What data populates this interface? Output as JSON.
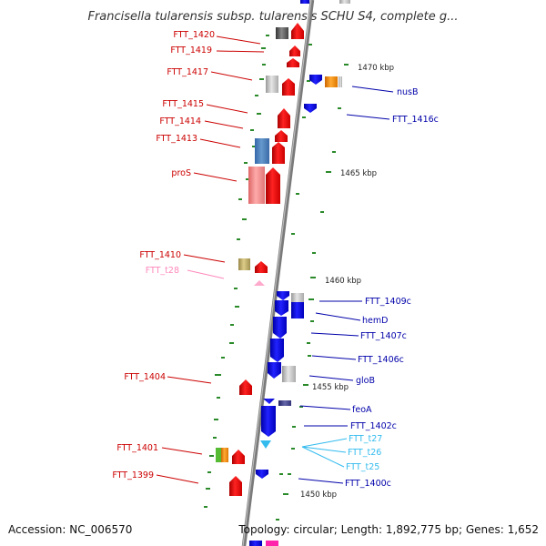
{
  "title": "Francisella tularensis subsp. tularensis SCHU S4, complete g...",
  "footer": {
    "accession": "Accession: NC_006570",
    "topology": "Topology: circular; Length: 1,892,775 bp; Genes: 1,652"
  },
  "colors": {
    "backbone": "#888888",
    "forward_gene": "#ff0000",
    "reverse_gene": "#0000ee",
    "trna": "#33bbee",
    "pseudo_rna": "#ff99cc",
    "grey_gene": "#bbbbbb",
    "tick": "#2a8a2a"
  },
  "scale_labels": [
    "1470 kbp",
    "1465 kbp",
    "1460 kbp",
    "1455 kbp",
    "1450 kbp"
  ],
  "left_labels": [
    {
      "text": "FTT_1420",
      "color": "#cc0000"
    },
    {
      "text": "FTT_1419",
      "color": "#cc0000"
    },
    {
      "text": "FTT_1417",
      "color": "#cc0000"
    },
    {
      "text": "FTT_1415",
      "color": "#cc0000"
    },
    {
      "text": "FTT_1414",
      "color": "#cc0000"
    },
    {
      "text": "FTT_1413",
      "color": "#cc0000"
    },
    {
      "text": "proS",
      "color": "#cc0000"
    },
    {
      "text": "FTT_1410",
      "color": "#cc0000"
    },
    {
      "text": "FTT_t28",
      "color": "#ff88bb"
    },
    {
      "text": "FTT_1404",
      "color": "#cc0000"
    },
    {
      "text": "FTT_1401",
      "color": "#cc0000"
    },
    {
      "text": "FTT_1399",
      "color": "#cc0000"
    }
  ],
  "right_labels": [
    {
      "text": "nusB",
      "color": "#0000aa"
    },
    {
      "text": "FTT_1416c",
      "color": "#0000aa"
    },
    {
      "text": "FTT_1409c",
      "color": "#0000aa"
    },
    {
      "text": "hemD",
      "color": "#0000aa"
    },
    {
      "text": "FTT_1407c",
      "color": "#0000aa"
    },
    {
      "text": "FTT_1406c",
      "color": "#0000aa"
    },
    {
      "text": "gloB",
      "color": "#0000aa"
    },
    {
      "text": "feoA",
      "color": "#0000aa"
    },
    {
      "text": "FTT_1402c",
      "color": "#0000aa"
    },
    {
      "text": "FTT_t27",
      "color": "#33bbee"
    },
    {
      "text": "FTT_t26",
      "color": "#33bbee"
    },
    {
      "text": "FTT_t25",
      "color": "#33bbee"
    },
    {
      "text": "FTT_1400c",
      "color": "#0000aa"
    }
  ]
}
